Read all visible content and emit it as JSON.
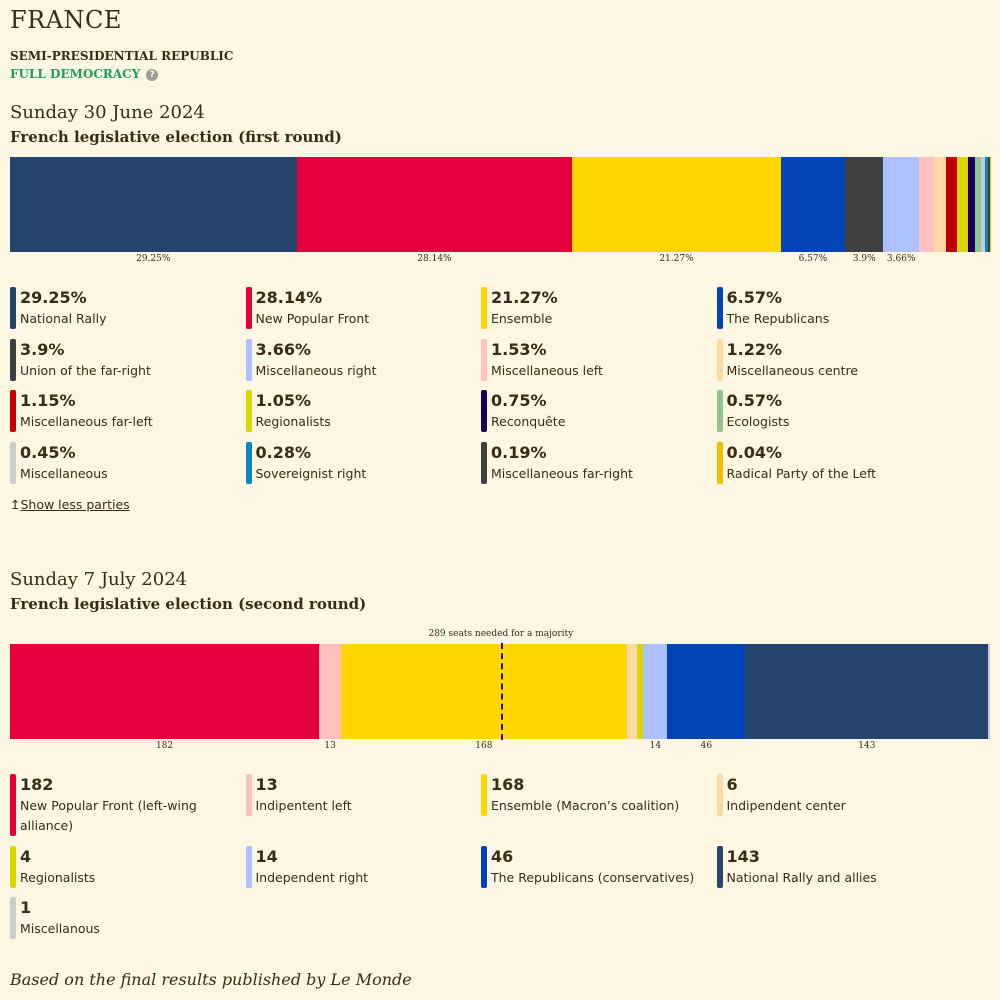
{
  "country": "FRANCE",
  "government_type": "SEMI-PRESIDENTIAL REPUBLIC",
  "democracy": {
    "label": "FULL DEMOCRACY",
    "color": "#1aa05a",
    "help_icon": "question-circle-icon"
  },
  "toggle": {
    "icon": "↥",
    "label": "Show less parties"
  },
  "footer": "Based on the final results published by Le Monde",
  "chart_data": [
    {
      "type": "bar",
      "orientation": "stacked-horizontal",
      "date": "Sunday 30 June 2024",
      "title": "French legislative election (first round)",
      "unit": "%",
      "bar_labels_shown": [
        "29.25%",
        "28.14%",
        "21.27%",
        "6.57%",
        "3.9%",
        "3.66%"
      ],
      "series": [
        {
          "name": "National Rally",
          "value": 29.25,
          "label": "29.25%",
          "color": "#26456e"
        },
        {
          "name": "New Popular Front",
          "value": 28.14,
          "label": "28.14%",
          "color": "#e4003b"
        },
        {
          "name": "Ensemble",
          "value": 21.27,
          "label": "21.27%",
          "color": "#ffd600"
        },
        {
          "name": "The Republicans",
          "value": 6.57,
          "label": "6.57%",
          "color": "#0044b8"
        },
        {
          "name": "Union of the far-right",
          "value": 3.9,
          "label": "3.9%",
          "color": "#404040"
        },
        {
          "name": "Miscellaneous right",
          "value": 3.66,
          "label": "3.66%",
          "color": "#adc0ff"
        },
        {
          "name": "Miscellaneous left",
          "value": 1.53,
          "label": "1.53%",
          "color": "#ffc0c0"
        },
        {
          "name": "Miscellaneous centre",
          "value": 1.22,
          "label": "1.22%",
          "color": "#fdd9a8"
        },
        {
          "name": "Miscellaneous far-left",
          "value": 1.15,
          "label": "1.15%",
          "color": "#c00000"
        },
        {
          "name": "Regionalists",
          "value": 1.05,
          "label": "1.05%",
          "color": "#d8d800"
        },
        {
          "name": "Reconquête",
          "value": 0.75,
          "label": "0.75%",
          "color": "#1a0056"
        },
        {
          "name": "Ecologists",
          "value": 0.57,
          "label": "0.57%",
          "color": "#8fc58f"
        },
        {
          "name": "Miscellaneous",
          "value": 0.45,
          "label": "0.45%",
          "color": "#cccccc"
        },
        {
          "name": "Sovereignist right",
          "value": 0.28,
          "label": "0.28%",
          "color": "#0b84c8"
        },
        {
          "name": "Miscellaneous far-right",
          "value": 0.19,
          "label": "0.19%",
          "color": "#404040"
        },
        {
          "name": "Radical Party of the Left",
          "value": 0.04,
          "label": "0.04%",
          "color": "#f0c000"
        }
      ]
    },
    {
      "type": "bar",
      "orientation": "stacked-horizontal",
      "date": "Sunday 7 July 2024",
      "title": "French legislative election (second round)",
      "unit": "seats",
      "total": 577,
      "majority": {
        "value": 289,
        "label": "289 seats needed for a majority"
      },
      "bar_labels_shown": [
        "182",
        "13",
        "168",
        "14",
        "46",
        "143"
      ],
      "series": [
        {
          "name": "New Popular Front (left-wing alliance)",
          "value": 182,
          "label": "182",
          "color": "#e4003b"
        },
        {
          "name": "Indipentent left",
          "value": 13,
          "label": "13",
          "color": "#ffc0c0"
        },
        {
          "name": "Ensemble (Macron’s coalition)",
          "value": 168,
          "label": "168",
          "color": "#ffd600"
        },
        {
          "name": "Indipendent center",
          "value": 6,
          "label": "6",
          "color": "#fdd9a8"
        },
        {
          "name": "Regionalists",
          "value": 4,
          "label": "4",
          "color": "#d8d800"
        },
        {
          "name": "Independent right",
          "value": 14,
          "label": "14",
          "color": "#adc0ff"
        },
        {
          "name": "The Republicans (conservatives)",
          "value": 46,
          "label": "46",
          "color": "#0044b8"
        },
        {
          "name": "National Rally and allies",
          "value": 143,
          "label": "143",
          "color": "#26456e"
        },
        {
          "name": "Miscellanous",
          "value": 1,
          "label": "1",
          "color": "#cccccc"
        }
      ]
    }
  ]
}
